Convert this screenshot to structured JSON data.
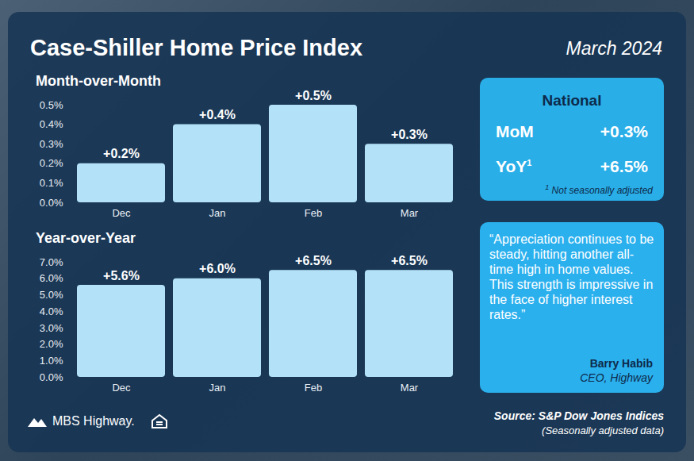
{
  "header": {
    "title": "Case-Shiller Home Price Index",
    "date": "March 2024"
  },
  "chart_data": [
    {
      "type": "bar",
      "title": "Month-over-Month",
      "categories": [
        "Dec",
        "Jan",
        "Feb",
        "Mar"
      ],
      "values": [
        0.2,
        0.4,
        0.5,
        0.3
      ],
      "value_labels": [
        "+0.2%",
        "+0.4%",
        "+0.5%",
        "+0.3%"
      ],
      "color": "#b3e2f8",
      "data_labels": true,
      "grid": false,
      "ylim": [
        0,
        0.5
      ],
      "yticks": [
        {
          "value": 0,
          "label": "0.0%"
        },
        {
          "value": 0.1,
          "label": "0.1%"
        },
        {
          "value": 0.2,
          "label": "0.2%"
        },
        {
          "value": 0.3,
          "label": "0.3%"
        },
        {
          "value": 0.4,
          "label": "0.4%"
        },
        {
          "value": 0.5,
          "label": "0.5%"
        }
      ]
    },
    {
      "type": "bar",
      "title": "Year-over-Year",
      "categories": [
        "Dec",
        "Jan",
        "Feb",
        "Mar"
      ],
      "values": [
        5.6,
        6.0,
        6.5,
        6.5
      ],
      "value_labels": [
        "+5.6%",
        "+6.0%",
        "+6.5%",
        "+6.5%"
      ],
      "color": "#b3e2f8",
      "data_labels": true,
      "grid": false,
      "ylim": [
        0,
        7
      ],
      "yticks": [
        {
          "value": 0,
          "label": "0.0%"
        },
        {
          "value": 1,
          "label": "1.0%"
        },
        {
          "value": 2,
          "label": "2.0%"
        },
        {
          "value": 3,
          "label": "3.0%"
        },
        {
          "value": 4,
          "label": "4.0%"
        },
        {
          "value": 5,
          "label": "5.0%"
        },
        {
          "value": 6,
          "label": "6.0%"
        },
        {
          "value": 7,
          "label": "7.0%"
        }
      ]
    }
  ],
  "national": {
    "title": "National",
    "rows": [
      {
        "label": "MoM",
        "value": "+0.3%"
      },
      {
        "label": "YoY",
        "footnote_marker": "1",
        "value": "+6.5%"
      }
    ],
    "footnote": {
      "marker": "1",
      "text": "Not seasonally adjusted"
    }
  },
  "quote": {
    "text": "“Appreciation continues to be steady, hitting another all-time high in home values. This strength is impressive in the face of higher interest rates.”",
    "author": "Barry Habib",
    "role": "CEO, Highway"
  },
  "footer": {
    "logo": "MBS Highway.",
    "source": "Source: S&P Dow Jones Indices",
    "note": "(Seasonally adjusted data)"
  }
}
